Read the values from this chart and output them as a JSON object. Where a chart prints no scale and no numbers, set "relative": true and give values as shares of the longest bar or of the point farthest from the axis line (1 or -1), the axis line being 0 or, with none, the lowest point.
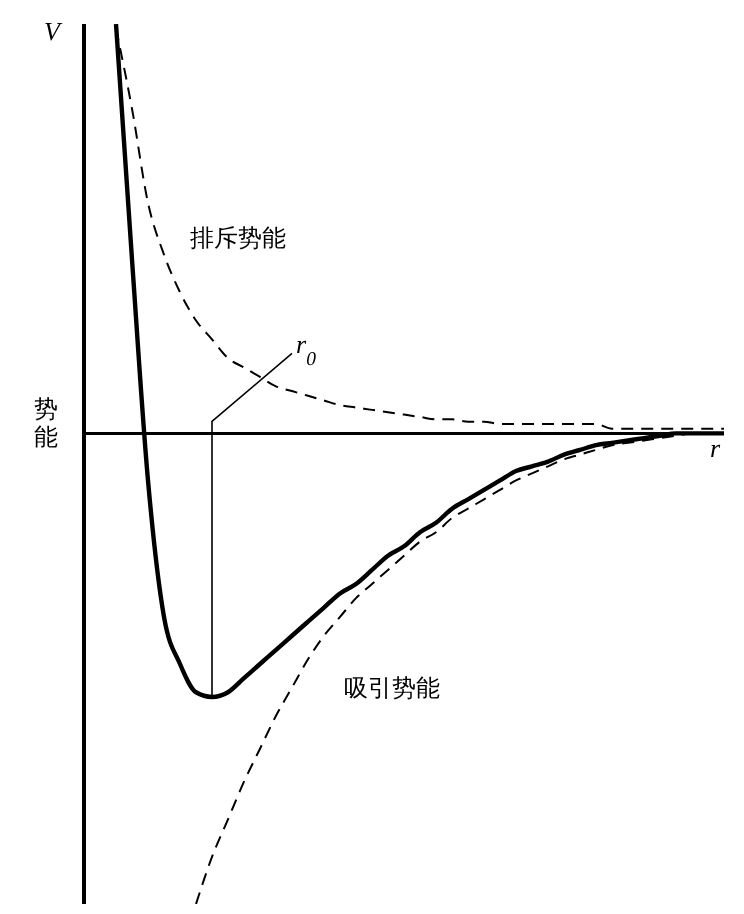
{
  "chart_data": {
    "type": "line",
    "relative": true,
    "xlabel": "r",
    "ylabel": "势能",
    "annotations": [
      "V",
      "r$_{0}$"
    ],
    "marker": "none",
    "categories": [
      null,
      null,
      null,
      null,
      null,
      null,
      null,
      null,
      null,
      null,
      null,
      null,
      null,
      null,
      null,
      null,
      null,
      null,
      null,
      null,
      null,
      null,
      null,
      null,
      null,
      null,
      null,
      null,
      null,
      null,
      null,
      null,
      null,
      null,
      null,
      null,
      null,
      null,
      null,
      null,
      null
    ],
    "series": [
      {
        "color": "#000000",
        "line_style": "solid",
        "values": [
          null,
          null,
          0.87,
          0.37,
          -0.1,
          -0.39,
          -0.49,
          -0.55,
          -0.56,
          -0.55,
          -0.52,
          -0.49,
          -0.46,
          -0.43,
          -0.4,
          -0.37,
          -0.34,
          -0.32,
          -0.29,
          -0.26,
          -0.24,
          -0.21,
          -0.19,
          -0.16,
          -0.14,
          -0.12,
          -0.1,
          -0.08,
          -0.07,
          -0.06,
          -0.045,
          -0.035,
          -0.025,
          -0.02,
          -0.015,
          -0.01,
          -0.005,
          0,
          0,
          0,
          0
        ]
      },
      {
        "name": "排斥势能",
        "color": "#000000",
        "line_style": "dashed",
        "values": [
          null,
          null,
          0.86,
          0.69,
          0.49,
          0.38,
          0.3,
          0.24,
          0.2,
          0.16,
          0.14,
          0.12,
          0.1,
          0.09,
          0.08,
          0.07,
          0.06,
          0.055,
          0.05,
          0.045,
          0.04,
          0.035,
          0.03,
          0.03,
          0.025,
          0.025,
          0.02,
          0.02,
          0.02,
          0.02,
          0.02,
          0.02,
          0.02,
          0.01,
          0.01,
          0.01,
          0.01,
          0.01,
          0.01,
          0.01,
          0.01
        ]
      },
      {
        "name": "吸引势能",
        "color": "#000000",
        "line_style": "dashed",
        "values": [
          null,
          null,
          null,
          null,
          null,
          null,
          null,
          -1,
          -0.9,
          -0.82,
          -0.74,
          -0.67,
          -0.6,
          -0.54,
          -0.48,
          -0.43,
          -0.39,
          -0.35,
          -0.32,
          -0.29,
          -0.26,
          -0.23,
          -0.21,
          -0.18,
          -0.16,
          -0.14,
          -0.12,
          -0.1,
          -0.085,
          -0.07,
          -0.055,
          -0.045,
          -0.035,
          -0.025,
          -0.02,
          -0.015,
          -0.01,
          -0.005,
          0,
          0,
          0
        ]
      }
    ]
  }
}
